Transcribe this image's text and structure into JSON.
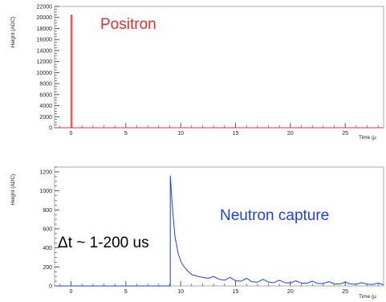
{
  "chart_data": [
    {
      "type": "line",
      "ylabel": "Height (ADC)",
      "xlabel": "Time (μ",
      "ylim": [
        0,
        22000
      ],
      "xlim": [
        -1.5,
        28.5
      ],
      "yticks": [
        "0",
        "2000",
        "4000",
        "6000",
        "8000",
        "10000",
        "12000",
        "14000",
        "16000",
        "18000",
        "20000",
        "22000"
      ],
      "xticks": [
        "0",
        "5",
        "10",
        "15",
        "20",
        "25"
      ],
      "annotation": "Positron",
      "annotation_color": "#e03030",
      "series": [
        {
          "color": "#e03030",
          "x": [
            -1.5,
            0,
            0,
            0.1,
            0.1,
            28.5
          ],
          "y": [
            0,
            0,
            20400,
            20400,
            0,
            0
          ]
        }
      ]
    },
    {
      "type": "line",
      "ylabel": "Height (ADC)",
      "xlabel": "Time (μ",
      "ylim": [
        0,
        1250
      ],
      "xlim": [
        -1.5,
        28.5
      ],
      "yticks": [
        "0",
        "200",
        "400",
        "600",
        "800",
        "1000",
        "1200"
      ],
      "xticks": [
        "0",
        "5",
        "10",
        "15",
        "20",
        "25"
      ],
      "annotation": "Neutron capture",
      "annotation_color": "#2040e0",
      "series": [
        {
          "color": "#2040e0",
          "x": [
            -1.5,
            9.05,
            9.05,
            9.2,
            9.3,
            9.4,
            9.5,
            9.6,
            9.7,
            9.8,
            9.9,
            10.0,
            10.2,
            10.4,
            10.6,
            10.8,
            11.0,
            11.3,
            11.6,
            12.0,
            12.5,
            13.0,
            13.5,
            14.0,
            14.5,
            15.0,
            15.5,
            16.0,
            16.5,
            17.0,
            17.5,
            18.0,
            18.5,
            19.0,
            19.5,
            20.0,
            20.5,
            21.0,
            21.5,
            22.0,
            22.5,
            23.0,
            23.5,
            24.0,
            24.5,
            25.0,
            25.5,
            26.0,
            26.5,
            27.0,
            27.5,
            28.0,
            28.5
          ],
          "y": [
            0,
            0,
            1160,
            900,
            750,
            620,
            500,
            450,
            380,
            330,
            300,
            260,
            220,
            190,
            160,
            140,
            120,
            110,
            100,
            90,
            80,
            100,
            70,
            60,
            90,
            55,
            50,
            80,
            45,
            40,
            70,
            40,
            35,
            60,
            35,
            30,
            55,
            30,
            28,
            50,
            25,
            25,
            45,
            22,
            20,
            40,
            20,
            18,
            35,
            18,
            15,
            30,
            12
          ]
        }
      ]
    }
  ],
  "overlay": {
    "label": "Δt ~ 1-200 us"
  }
}
